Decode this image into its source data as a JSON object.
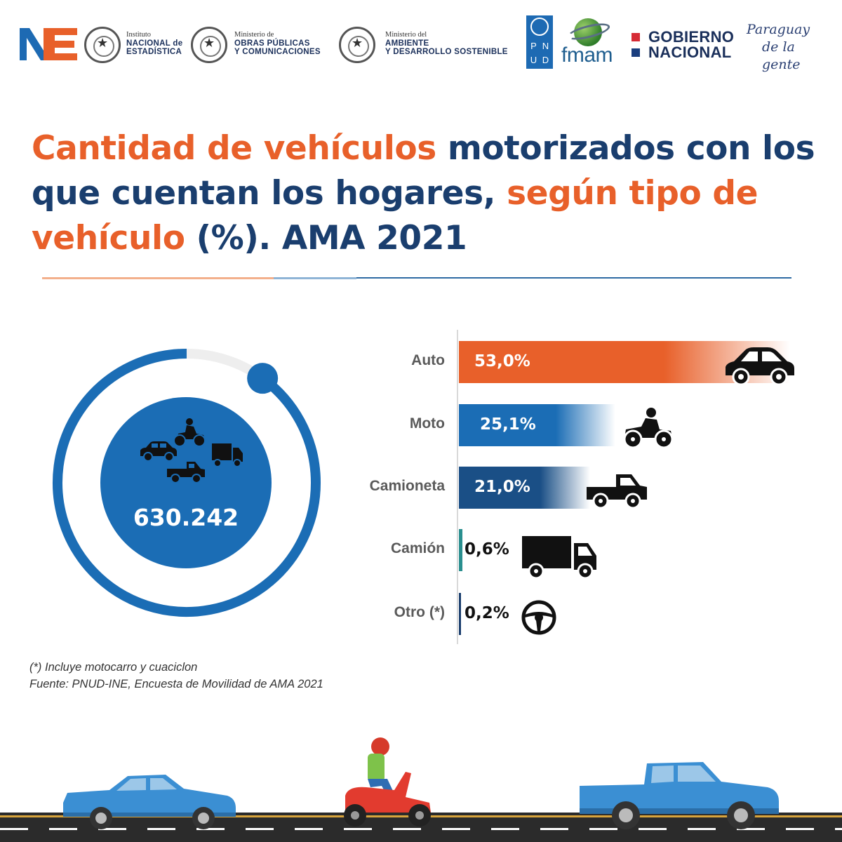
{
  "header": {
    "ne_logo": "NE",
    "inst1": {
      "line1": "Instituto",
      "line2": "NACIONAL de",
      "line3": "ESTADÍSTICA"
    },
    "inst2": {
      "line1": "Ministerio de",
      "line2": "OBRAS PÚBLICAS",
      "line3": "Y COMUNICACIONES"
    },
    "inst3": {
      "line1": "Ministerio del",
      "line2": "AMBIENTE",
      "line3": "Y DESARROLLO SOSTENIBLE"
    },
    "pnud_letters": [
      "P",
      "N",
      "U",
      "D"
    ],
    "fmam": "fmam",
    "gobierno": {
      "line1": "GOBIERNO",
      "line2": "NACIONAL"
    },
    "paraguay": {
      "line1": "Paraguay",
      "line2": "de la gente"
    }
  },
  "title": {
    "part1": "Cantidad de vehículos",
    "part2": " motorizados con los que cuentan los hogares, ",
    "part3": "según tipo de vehículo",
    "part4": " (%). AMA 2021"
  },
  "colors": {
    "orange": "#e8602a",
    "navy": "#1a3e6e",
    "blue": "#1b6db5",
    "dark_blue": "#1a4f86",
    "teal": "#2a8f8f",
    "ring_gray": "#eeeeee"
  },
  "icons": [
    "car-icon",
    "quad-bike-icon",
    "pickup-truck-icon",
    "truck-icon",
    "steering-wheel-icon"
  ],
  "chart_data": {
    "type": "bar",
    "orientation": "horizontal",
    "title": "Cantidad de vehículos motorizados con los que cuentan los hogares, según tipo de vehículo (%). AMA 2021",
    "total_label": "630.242",
    "unit": "%",
    "categories": [
      "Auto",
      "Moto",
      "Camioneta",
      "Camión",
      "Otro (*)"
    ],
    "values": [
      53.0,
      25.1,
      21.0,
      0.6,
      0.2
    ],
    "value_labels": [
      "53,0%",
      "25,1%",
      "21,0%",
      "0,6%",
      "0,2%"
    ],
    "donut_fraction": 0.9
  },
  "footnote": "(*) Incluye motocarro y cuaciclon",
  "source": "Fuente: PNUD-INE, Encuesta de Movilidad de AMA 2021"
}
